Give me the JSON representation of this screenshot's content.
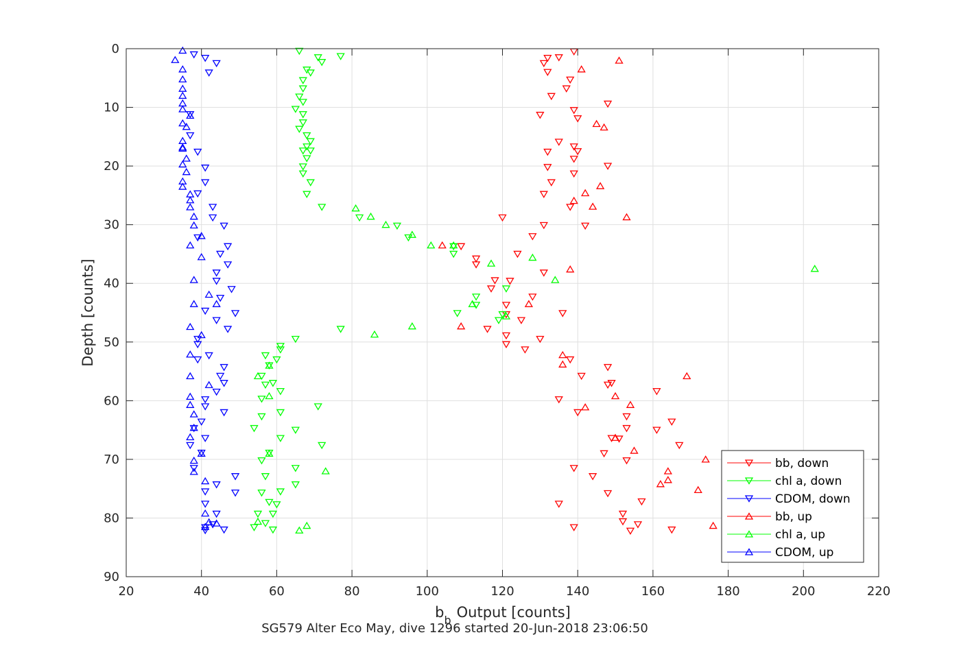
{
  "chart_data": {
    "type": "scatter",
    "title": "SG579 Alter Eco May, dive 1296 started 20-Jun-2018 23:06:50",
    "xlabel": "Output [counts]",
    "xlabel_base": "b",
    "xlabel_sub": "b",
    "ylabel": "Depth [counts]",
    "xlim": [
      20,
      220
    ],
    "ylim": [
      0,
      90
    ],
    "y_reversed": true,
    "grid": true,
    "legend_position": "bottom-right",
    "xticks": [
      "20",
      "40",
      "60",
      "80",
      "100",
      "120",
      "140",
      "160",
      "180",
      "200",
      "220"
    ],
    "yticks": [
      "0",
      "10",
      "20",
      "30",
      "40",
      "50",
      "60",
      "70",
      "80",
      "90"
    ],
    "series": [
      {
        "name": "bb, down",
        "color": "#ff0000",
        "marker": "triangle-down",
        "points": [
          [
            139,
            0.5
          ],
          [
            135,
            1.5
          ],
          [
            132,
            1.6
          ],
          [
            131,
            2.5
          ],
          [
            132,
            4.0
          ],
          [
            138,
            5.3
          ],
          [
            137,
            6.8
          ],
          [
            133,
            8.1
          ],
          [
            148,
            9.4
          ],
          [
            139,
            10.5
          ],
          [
            130,
            11.3
          ],
          [
            140,
            11.9
          ],
          [
            135,
            15.9
          ],
          [
            139,
            16.7
          ],
          [
            140,
            17.5
          ],
          [
            132,
            17.6
          ],
          [
            139,
            18.8
          ],
          [
            132,
            20.2
          ],
          [
            148,
            20.0
          ],
          [
            139,
            21.3
          ],
          [
            133,
            22.8
          ],
          [
            131,
            24.8
          ],
          [
            138,
            27.0
          ],
          [
            142,
            30.2
          ],
          [
            131,
            30.1
          ],
          [
            120,
            28.8
          ],
          [
            128,
            32.0
          ],
          [
            124,
            35.0
          ],
          [
            113,
            35.8
          ],
          [
            113,
            36.8
          ],
          [
            109,
            33.7
          ],
          [
            131,
            38.2
          ],
          [
            118,
            39.5
          ],
          [
            117,
            40.9
          ],
          [
            122,
            39.6
          ],
          [
            128,
            42.3
          ],
          [
            121,
            43.7
          ],
          [
            136,
            45.1
          ],
          [
            121,
            45.3
          ],
          [
            125,
            46.3
          ],
          [
            116,
            47.8
          ],
          [
            121,
            48.9
          ],
          [
            130,
            49.5
          ],
          [
            121,
            50.4
          ],
          [
            126,
            51.3
          ],
          [
            138,
            53.0
          ],
          [
            148,
            54.3
          ],
          [
            141,
            55.8
          ],
          [
            149,
            57.0
          ],
          [
            148,
            57.3
          ],
          [
            161,
            58.4
          ],
          [
            135,
            59.8
          ],
          [
            140,
            62.0
          ],
          [
            153,
            62.7
          ],
          [
            165,
            63.6
          ],
          [
            161,
            65.0
          ],
          [
            153,
            64.7
          ],
          [
            167,
            67.6
          ],
          [
            151,
            66.5
          ],
          [
            149,
            66.4
          ],
          [
            147,
            69.0
          ],
          [
            153,
            70.2
          ],
          [
            139,
            71.5
          ],
          [
            144,
            72.9
          ],
          [
            148,
            75.8
          ],
          [
            157,
            77.2
          ],
          [
            135,
            77.6
          ],
          [
            152,
            79.3
          ],
          [
            152,
            80.6
          ],
          [
            156,
            81.1
          ],
          [
            139,
            81.6
          ],
          [
            154,
            82.2
          ],
          [
            165,
            82.0
          ]
        ]
      },
      {
        "name": "chl a, down",
        "color": "#00ff00",
        "marker": "triangle-down",
        "points": [
          [
            66,
            0.4
          ],
          [
            71,
            1.5
          ],
          [
            77,
            1.3
          ],
          [
            72,
            2.3
          ],
          [
            68,
            3.6
          ],
          [
            69,
            4.1
          ],
          [
            67,
            5.4
          ],
          [
            67,
            6.8
          ],
          [
            66,
            8.2
          ],
          [
            67,
            9.1
          ],
          [
            65,
            10.3
          ],
          [
            67,
            11.2
          ],
          [
            67,
            12.6
          ],
          [
            66,
            13.7
          ],
          [
            68,
            14.8
          ],
          [
            69,
            15.8
          ],
          [
            68,
            16.7
          ],
          [
            67,
            17.4
          ],
          [
            69,
            17.4
          ],
          [
            68,
            18.7
          ],
          [
            67,
            20.1
          ],
          [
            67,
            21.3
          ],
          [
            69,
            22.8
          ],
          [
            68,
            24.8
          ],
          [
            72,
            27.0
          ],
          [
            82,
            28.8
          ],
          [
            92,
            30.2
          ],
          [
            95,
            32.2
          ],
          [
            107,
            35.0
          ],
          [
            107,
            33.7
          ],
          [
            113,
            42.3
          ],
          [
            113,
            43.7
          ],
          [
            108,
            45.1
          ],
          [
            119,
            46.3
          ],
          [
            121,
            40.9
          ],
          [
            120,
            45.3
          ],
          [
            65,
            49.5
          ],
          [
            77,
            47.8
          ],
          [
            61,
            50.7
          ],
          [
            61,
            51.3
          ],
          [
            57,
            52.3
          ],
          [
            60,
            53.0
          ],
          [
            58,
            54.0
          ],
          [
            56,
            55.8
          ],
          [
            59,
            57.0
          ],
          [
            57,
            57.3
          ],
          [
            61,
            58.4
          ],
          [
            56,
            59.7
          ],
          [
            61,
            62.0
          ],
          [
            56,
            62.7
          ],
          [
            71,
            61.0
          ],
          [
            65,
            65.0
          ],
          [
            54,
            64.7
          ],
          [
            61,
            66.4
          ],
          [
            72,
            67.6
          ],
          [
            58,
            68.9
          ],
          [
            56,
            70.2
          ],
          [
            65,
            71.5
          ],
          [
            57,
            72.9
          ],
          [
            65,
            74.3
          ],
          [
            56,
            75.7
          ],
          [
            61,
            75.5
          ],
          [
            58,
            77.3
          ],
          [
            60,
            77.7
          ],
          [
            55,
            79.3
          ],
          [
            59,
            79.3
          ],
          [
            57,
            80.9
          ],
          [
            54,
            81.6
          ],
          [
            59,
            82.0
          ]
        ]
      },
      {
        "name": "CDOM, down",
        "color": "#0000ff",
        "marker": "triangle-down",
        "points": [
          [
            38,
            1.0
          ],
          [
            41,
            1.6
          ],
          [
            44,
            2.5
          ],
          [
            42,
            4.1
          ],
          [
            37,
            11.2
          ],
          [
            37,
            14.8
          ],
          [
            39,
            17.6
          ],
          [
            41,
            20.3
          ],
          [
            41,
            22.8
          ],
          [
            39,
            24.7
          ],
          [
            43,
            27.0
          ],
          [
            43,
            28.8
          ],
          [
            46,
            30.2
          ],
          [
            39,
            32.2
          ],
          [
            47,
            33.7
          ],
          [
            45,
            35.0
          ],
          [
            47,
            36.8
          ],
          [
            44,
            38.2
          ],
          [
            44,
            39.6
          ],
          [
            48,
            41.0
          ],
          [
            45,
            42.5
          ],
          [
            41,
            44.7
          ],
          [
            49,
            45.1
          ],
          [
            44,
            46.3
          ],
          [
            47,
            47.8
          ],
          [
            39,
            49.5
          ],
          [
            39,
            50.4
          ],
          [
            42,
            52.3
          ],
          [
            39,
            53.0
          ],
          [
            46,
            54.3
          ],
          [
            45,
            55.8
          ],
          [
            46,
            57.0
          ],
          [
            44,
            58.5
          ],
          [
            41,
            59.8
          ],
          [
            41,
            61.0
          ],
          [
            46,
            62.0
          ],
          [
            40,
            63.6
          ],
          [
            38,
            64.7
          ],
          [
            41,
            66.4
          ],
          [
            37,
            67.6
          ],
          [
            40,
            68.9
          ],
          [
            38,
            71.5
          ],
          [
            49,
            72.9
          ],
          [
            44,
            74.3
          ],
          [
            49,
            75.7
          ],
          [
            41,
            75.5
          ],
          [
            41,
            77.6
          ],
          [
            44,
            79.3
          ],
          [
            43,
            81.1
          ],
          [
            41,
            81.6
          ],
          [
            46,
            82.0
          ],
          [
            41,
            82.1
          ]
        ]
      },
      {
        "name": "bb, up",
        "color": "#ff0000",
        "marker": "triangle-up",
        "points": [
          [
            151,
            2.0
          ],
          [
            141,
            3.5
          ],
          [
            145,
            12.8
          ],
          [
            147,
            13.4
          ],
          [
            146,
            23.4
          ],
          [
            142,
            24.6
          ],
          [
            139,
            25.9
          ],
          [
            144,
            26.9
          ],
          [
            153,
            28.7
          ],
          [
            104,
            33.5
          ],
          [
            138,
            37.6
          ],
          [
            127,
            43.5
          ],
          [
            109,
            47.3
          ],
          [
            136,
            52.2
          ],
          [
            136,
            53.8
          ],
          [
            169,
            55.8
          ],
          [
            150,
            59.2
          ],
          [
            154,
            60.7
          ],
          [
            142,
            61.1
          ],
          [
            150,
            66.3
          ],
          [
            155,
            68.5
          ],
          [
            174,
            70.0
          ],
          [
            164,
            72.0
          ],
          [
            164,
            73.5
          ],
          [
            162,
            74.2
          ],
          [
            172,
            75.2
          ],
          [
            176,
            81.3
          ]
        ]
      },
      {
        "name": "chl a, up",
        "color": "#00ff00",
        "marker": "triangle-up",
        "points": [
          [
            81,
            27.2
          ],
          [
            85,
            28.6
          ],
          [
            89,
            30.0
          ],
          [
            96,
            31.7
          ],
          [
            101,
            33.5
          ],
          [
            107,
            33.5
          ],
          [
            117,
            36.6
          ],
          [
            128,
            35.6
          ],
          [
            203,
            37.5
          ],
          [
            134,
            39.4
          ],
          [
            112,
            43.5
          ],
          [
            121,
            45.6
          ],
          [
            96,
            47.3
          ],
          [
            86,
            48.7
          ],
          [
            55,
            55.8
          ],
          [
            58,
            54.0
          ],
          [
            58,
            59.2
          ],
          [
            58,
            69.0
          ],
          [
            73,
            72.0
          ],
          [
            68,
            81.3
          ],
          [
            66,
            82.1
          ],
          [
            55,
            80.6
          ]
        ]
      },
      {
        "name": "CDOM, up",
        "color": "#0000ff",
        "marker": "triangle-up",
        "points": [
          [
            35,
            0.3
          ],
          [
            33,
            1.9
          ],
          [
            35,
            3.5
          ],
          [
            35,
            5.2
          ],
          [
            35,
            6.8
          ],
          [
            35,
            8.0
          ],
          [
            35,
            9.3
          ],
          [
            35,
            10.3
          ],
          [
            37,
            11.4
          ],
          [
            35,
            12.7
          ],
          [
            36,
            13.3
          ],
          [
            35,
            15.7
          ],
          [
            35,
            16.8
          ],
          [
            35,
            17.0
          ],
          [
            36,
            18.7
          ],
          [
            35,
            19.7
          ],
          [
            36,
            21.0
          ],
          [
            35,
            22.6
          ],
          [
            35,
            23.5
          ],
          [
            37,
            24.8
          ],
          [
            37,
            25.8
          ],
          [
            37,
            27.0
          ],
          [
            38,
            28.6
          ],
          [
            38,
            30.1
          ],
          [
            40,
            31.9
          ],
          [
            37,
            33.5
          ],
          [
            40,
            35.5
          ],
          [
            38,
            39.4
          ],
          [
            42,
            41.9
          ],
          [
            38,
            43.5
          ],
          [
            44,
            43.5
          ],
          [
            37,
            47.4
          ],
          [
            40,
            48.8
          ],
          [
            37,
            52.1
          ],
          [
            37,
            55.8
          ],
          [
            42,
            57.3
          ],
          [
            37,
            59.3
          ],
          [
            37,
            60.7
          ],
          [
            38,
            62.3
          ],
          [
            38,
            64.6
          ],
          [
            37,
            66.2
          ],
          [
            40,
            69.0
          ],
          [
            38,
            70.2
          ],
          [
            38,
            72.1
          ],
          [
            41,
            73.7
          ],
          [
            41,
            79.2
          ],
          [
            42,
            80.7
          ],
          [
            41,
            81.5
          ],
          [
            44,
            80.9
          ]
        ]
      }
    ]
  }
}
